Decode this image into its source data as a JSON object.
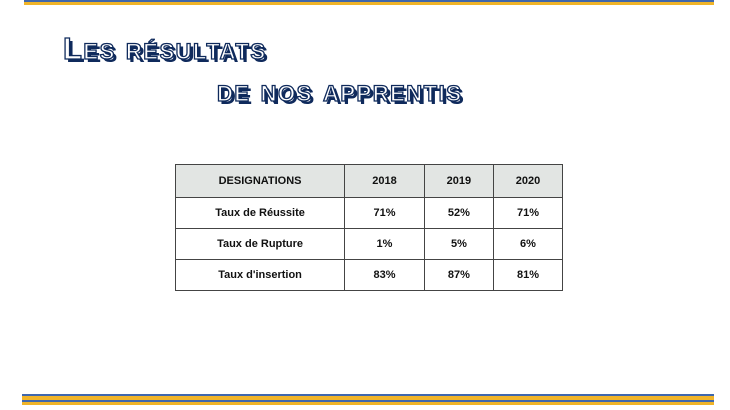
{
  "title_line1": "Les résultats",
  "title_line2": "de nos apprentis",
  "colors": {
    "band_blue": "#3f67ad",
    "band_gold": "#f0b429",
    "title_outline": "#0f2a5c",
    "header_bg": "#e2e5e3"
  },
  "table": {
    "headers": [
      "DESIGNATIONS",
      "2018",
      "2019",
      "2020"
    ],
    "rows": [
      {
        "label": "Taux de Réussite",
        "values": [
          "71%",
          "52%",
          "71%"
        ]
      },
      {
        "label": "Taux de Rupture",
        "values": [
          "1%",
          "5%",
          "6%"
        ]
      },
      {
        "label": "Taux d'insertion",
        "values": [
          "83%",
          "87%",
          "81%"
        ]
      }
    ]
  }
}
